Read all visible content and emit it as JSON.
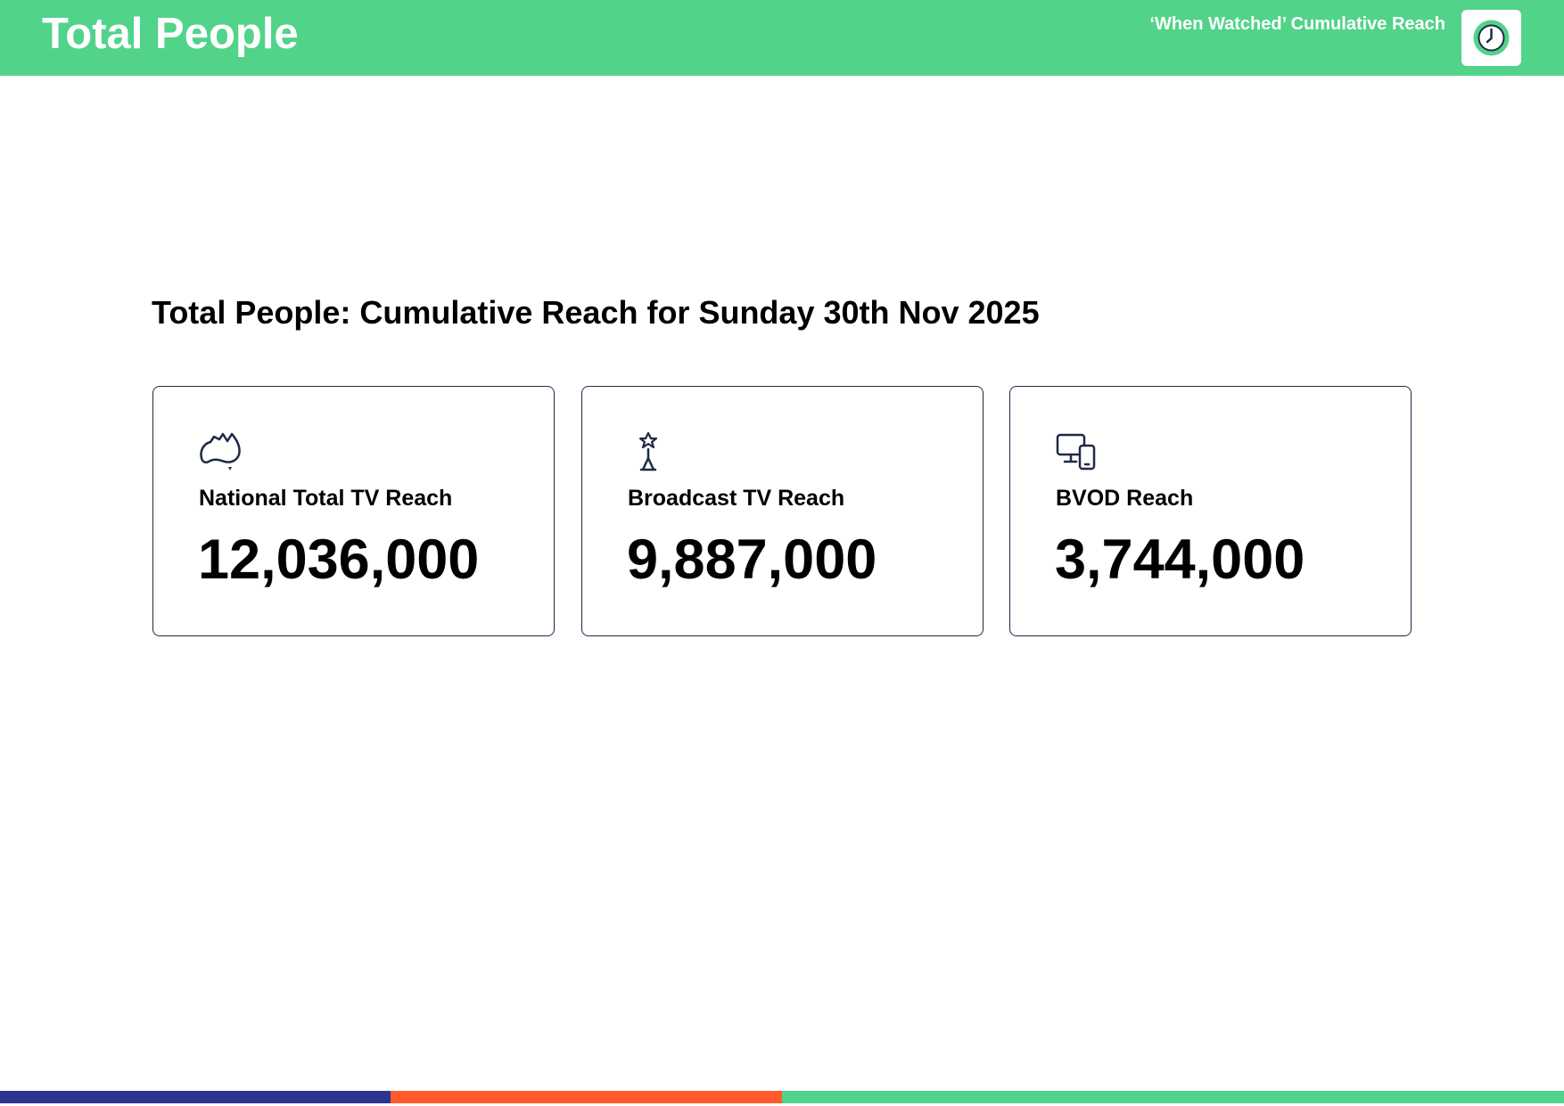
{
  "header": {
    "title": "Total People",
    "subtitle": "‘When Watched’ Cumulative Reach"
  },
  "heading": "Total People: Cumulative Reach for Sunday 30th Nov 2025",
  "cards": [
    {
      "label": "National Total TV Reach",
      "value": "12,036,000"
    },
    {
      "label": "Broadcast TV Reach",
      "value": "9,887,000"
    },
    {
      "label": "BVOD Reach",
      "value": "3,744,000"
    }
  ]
}
